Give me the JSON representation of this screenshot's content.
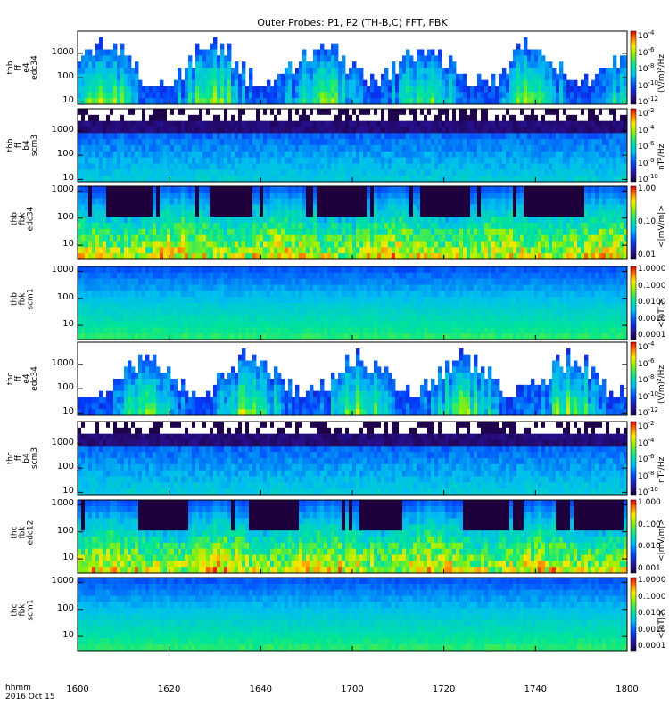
{
  "title": "Outer Probes: P1, P2 (TH-B,C) FFT, FBK",
  "footer": {
    "line1": "hhmm",
    "line2": "2016 Oct 15"
  },
  "chart_data": {
    "type": "heatmap",
    "title": "Outer Probes: P1, P2 (TH-B,C) FFT, FBK",
    "xlabel": "hhmm",
    "x_tick_labels": [
      "1600",
      "1620",
      "1640",
      "1700",
      "1720",
      "1740",
      "1800"
    ],
    "x_range": [
      "1600",
      "1800"
    ],
    "date": "2016 Oct 15",
    "panels": [
      {
        "probe": "thb",
        "kind": "ff",
        "channel": "e4",
        "sensor": "edc34",
        "ylabel": [
          "thb",
          "ff",
          "e4",
          "edc34"
        ],
        "yscale": "log",
        "y_tick_labels": [
          "10",
          "100",
          "1000"
        ],
        "ylim": [
          8,
          8192
        ],
        "colorbar_units": "(V/m)²/Hz",
        "colorbar_ticks": [
          {
            "base": "10",
            "exp": "-4"
          },
          {
            "base": "10",
            "exp": "-6"
          },
          {
            "base": "10",
            "exp": "-8"
          },
          {
            "base": "10",
            "exp": "-10"
          },
          {
            "base": "10",
            "exp": "-12"
          }
        ]
      },
      {
        "probe": "thb",
        "kind": "ff",
        "channel": "b4",
        "sensor": "scm3",
        "ylabel": [
          "thb",
          "ff",
          "b4",
          "scm3"
        ],
        "yscale": "log",
        "y_tick_labels": [
          "10",
          "100",
          "1000"
        ],
        "ylim": [
          8,
          8192
        ],
        "colorbar_units": "nT²/Hz",
        "colorbar_ticks": [
          {
            "base": "10",
            "exp": "-2"
          },
          {
            "base": "10",
            "exp": "-4"
          },
          {
            "base": "10",
            "exp": "-6"
          },
          {
            "base": "10",
            "exp": "-8"
          },
          {
            "base": "10",
            "exp": "-10"
          }
        ]
      },
      {
        "probe": "thb",
        "kind": "fbk",
        "channel": "",
        "sensor": "edc34",
        "ylabel": [
          "thb",
          "fbk",
          "edc34"
        ],
        "yscale": "log",
        "y_tick_labels": [
          "10",
          "100",
          "1000"
        ],
        "ylim": [
          3,
          1500
        ],
        "colorbar_units": "<|mV/m|>",
        "colorbar_ticks": [
          {
            "base": "1.00",
            "exp": ""
          },
          {
            "base": "0.10",
            "exp": ""
          },
          {
            "base": "0.01",
            "exp": ""
          }
        ]
      },
      {
        "probe": "thb",
        "kind": "fbk",
        "channel": "",
        "sensor": "scm1",
        "ylabel": [
          "thb",
          "fbk",
          "scm1"
        ],
        "yscale": "log",
        "y_tick_labels": [
          "10",
          "100",
          "1000"
        ],
        "ylim": [
          3,
          1500
        ],
        "colorbar_units": "<|nT|>",
        "colorbar_ticks": [
          {
            "base": "1.0000",
            "exp": ""
          },
          {
            "base": "0.1000",
            "exp": ""
          },
          {
            "base": "0.0100",
            "exp": ""
          },
          {
            "base": "0.0010",
            "exp": ""
          },
          {
            "base": "0.0001",
            "exp": ""
          }
        ]
      },
      {
        "probe": "thc",
        "kind": "ff",
        "channel": "e4",
        "sensor": "edc34",
        "ylabel": [
          "thc",
          "ff",
          "e4",
          "edc34"
        ],
        "yscale": "log",
        "y_tick_labels": [
          "10",
          "100",
          "1000"
        ],
        "ylim": [
          8,
          8192
        ],
        "colorbar_units": "(V/m)²/Hz",
        "colorbar_ticks": [
          {
            "base": "10",
            "exp": "-4"
          },
          {
            "base": "10",
            "exp": "-6"
          },
          {
            "base": "10",
            "exp": "-8"
          },
          {
            "base": "10",
            "exp": "-10"
          },
          {
            "base": "10",
            "exp": "-12"
          }
        ]
      },
      {
        "probe": "thc",
        "kind": "ff",
        "channel": "b4",
        "sensor": "scm3",
        "ylabel": [
          "thc",
          "ff",
          "b4",
          "scm3"
        ],
        "yscale": "log",
        "y_tick_labels": [
          "10",
          "100",
          "1000"
        ],
        "ylim": [
          8,
          8192
        ],
        "colorbar_units": "nT²/Hz",
        "colorbar_ticks": [
          {
            "base": "10",
            "exp": "-2"
          },
          {
            "base": "10",
            "exp": "-4"
          },
          {
            "base": "10",
            "exp": "-6"
          },
          {
            "base": "10",
            "exp": "-8"
          },
          {
            "base": "10",
            "exp": "-10"
          }
        ]
      },
      {
        "probe": "thc",
        "kind": "fbk",
        "channel": "",
        "sensor": "edc12",
        "ylabel": [
          "thc",
          "fbk",
          "edc12"
        ],
        "yscale": "log",
        "y_tick_labels": [
          "10",
          "100",
          "1000"
        ],
        "ylim": [
          3,
          1500
        ],
        "colorbar_units": "<|mV/m|>",
        "colorbar_ticks": [
          {
            "base": "1.000",
            "exp": ""
          },
          {
            "base": "0.100",
            "exp": ""
          },
          {
            "base": "0.010",
            "exp": ""
          },
          {
            "base": "0.001",
            "exp": ""
          }
        ]
      },
      {
        "probe": "thc",
        "kind": "fbk",
        "channel": "",
        "sensor": "scm1",
        "ylabel": [
          "thc",
          "fbk",
          "scm1"
        ],
        "yscale": "log",
        "y_tick_labels": [
          "10",
          "100",
          "1000"
        ],
        "ylim": [
          3,
          1500
        ],
        "colorbar_units": "<|nT|>",
        "colorbar_ticks": [
          {
            "base": "1.0000",
            "exp": ""
          },
          {
            "base": "0.1000",
            "exp": ""
          },
          {
            "base": "0.0100",
            "exp": ""
          },
          {
            "base": "0.0010",
            "exp": ""
          },
          {
            "base": "0.0001",
            "exp": ""
          }
        ]
      }
    ]
  }
}
